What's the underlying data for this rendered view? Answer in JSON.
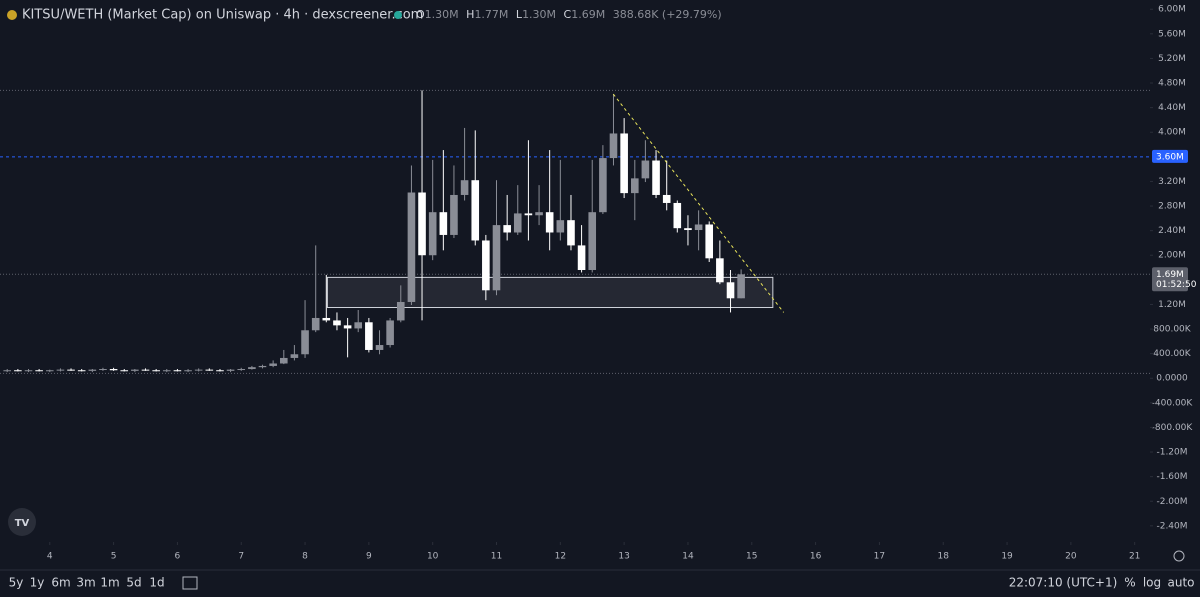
{
  "chart_data": {
    "type": "candlestick",
    "title": "KITSU/WETH (Market Cap) on Uniswap · 4h · dexscreener.com",
    "legend": {
      "o_key": "O",
      "o": "1.30M",
      "h_key": "H",
      "h": "1.77M",
      "l_key": "L",
      "l": "1.30M",
      "c_key": "C",
      "c": "1.69M",
      "change": "388.68K (+29.79%)"
    },
    "x": [
      3.333,
      3.5,
      3.667,
      3.833,
      4,
      4.167,
      4.333,
      4.5,
      4.667,
      4.833,
      5,
      5.167,
      5.333,
      5.5,
      5.667,
      5.833,
      6,
      6.167,
      6.333,
      6.5,
      6.667,
      6.833,
      7,
      7.167,
      7.333,
      7.5,
      7.667,
      7.833,
      8,
      8.167,
      8.333,
      8.5,
      8.667,
      8.833,
      9,
      9.167,
      9.333,
      9.5,
      9.667,
      9.833,
      10,
      10.167,
      10.333,
      10.5,
      10.667,
      10.833,
      11,
      11.167,
      11.333,
      11.5,
      11.667,
      11.833,
      12,
      12.167,
      12.333,
      12.5,
      12.667,
      12.833,
      13,
      13.167,
      13.333,
      13.5,
      13.667,
      13.833,
      14,
      14.167,
      14.333,
      14.5,
      14.667,
      14.833
    ],
    "open": [
      0.12,
      0.13,
      0.12,
      0.13,
      0.12,
      0.13,
      0.14,
      0.13,
      0.12,
      0.14,
      0.15,
      0.13,
      0.12,
      0.14,
      0.13,
      0.12,
      0.13,
      0.12,
      0.13,
      0.14,
      0.13,
      0.12,
      0.14,
      0.15,
      0.18,
      0.2,
      0.24,
      0.33,
      0.39,
      0.78,
      0.98,
      0.94,
      0.86,
      0.81,
      0.91,
      0.46,
      0.54,
      0.94,
      1.24,
      3.02,
      2.0,
      2.7,
      2.33,
      2.98,
      3.22,
      2.24,
      1.43,
      2.49,
      2.37,
      2.68,
      2.65,
      2.7,
      2.37,
      2.57,
      2.16,
      1.76,
      2.7,
      3.58,
      3.98,
      3.01,
      3.25,
      3.54,
      2.98,
      2.85,
      2.44,
      2.41,
      2.5,
      1.95,
      1.56,
      1.3
    ],
    "high": [
      0.15,
      0.15,
      0.15,
      0.15,
      0.14,
      0.16,
      0.16,
      0.15,
      0.15,
      0.17,
      0.17,
      0.15,
      0.15,
      0.16,
      0.15,
      0.15,
      0.15,
      0.15,
      0.16,
      0.16,
      0.15,
      0.15,
      0.17,
      0.2,
      0.22,
      0.29,
      0.46,
      0.54,
      1.27,
      2.16,
      1.68,
      1.07,
      0.98,
      1.11,
      0.98,
      0.78,
      0.98,
      1.51,
      3.46,
      4.68,
      3.55,
      3.71,
      3.46,
      4.07,
      4.03,
      2.33,
      3.22,
      2.98,
      3.14,
      3.87,
      3.14,
      3.71,
      3.55,
      2.98,
      2.49,
      3.55,
      3.79,
      4.62,
      4.23,
      3.55,
      3.87,
      3.71,
      3.54,
      2.89,
      2.65,
      2.73,
      2.55,
      2.24,
      1.76,
      1.77
    ],
    "low": [
      0.1,
      0.11,
      0.1,
      0.11,
      0.1,
      0.11,
      0.12,
      0.11,
      0.1,
      0.12,
      0.12,
      0.11,
      0.1,
      0.12,
      0.11,
      0.1,
      0.11,
      0.1,
      0.11,
      0.12,
      0.11,
      0.1,
      0.12,
      0.14,
      0.16,
      0.18,
      0.23,
      0.29,
      0.33,
      0.75,
      0.91,
      0.78,
      0.34,
      0.75,
      0.42,
      0.39,
      0.5,
      0.91,
      1.19,
      0.94,
      1.92,
      2.08,
      2.28,
      2.89,
      2.16,
      1.27,
      1.35,
      2.24,
      2.33,
      2.24,
      2.49,
      2.08,
      2.24,
      2.08,
      1.72,
      1.72,
      2.67,
      3.46,
      2.93,
      2.57,
      3.19,
      2.93,
      2.73,
      2.37,
      2.16,
      2.08,
      1.89,
      1.53,
      1.07,
      1.3
    ],
    "close": [
      0.13,
      0.12,
      0.13,
      0.12,
      0.13,
      0.14,
      0.13,
      0.12,
      0.14,
      0.15,
      0.13,
      0.12,
      0.14,
      0.13,
      0.12,
      0.13,
      0.12,
      0.13,
      0.14,
      0.13,
      0.12,
      0.14,
      0.15,
      0.18,
      0.2,
      0.24,
      0.33,
      0.39,
      0.78,
      0.98,
      0.94,
      0.86,
      0.81,
      0.91,
      0.46,
      0.54,
      0.94,
      1.24,
      3.02,
      2.0,
      2.7,
      2.33,
      2.98,
      3.22,
      2.24,
      1.43,
      2.49,
      2.37,
      2.68,
      2.65,
      2.7,
      2.37,
      2.57,
      2.16,
      1.76,
      2.7,
      3.58,
      3.98,
      3.01,
      3.25,
      3.54,
      2.98,
      2.85,
      2.44,
      2.41,
      2.5,
      1.95,
      1.56,
      1.3,
      1.69
    ],
    "up_color": "#8a8d96",
    "down_color": "#ffffff",
    "xlim": [
      3.22,
      21.24
    ],
    "xticks": [
      4,
      5,
      6,
      7,
      8,
      9,
      10,
      11,
      12,
      13,
      14,
      15,
      16,
      17,
      18,
      19,
      20,
      21
    ],
    "ylim": [
      -2.63,
      6.15
    ],
    "yticks": [
      {
        "value": 6,
        "label": "6.00M"
      },
      {
        "value": 5.6,
        "label": "5.60M"
      },
      {
        "value": 5.2,
        "label": "5.20M"
      },
      {
        "value": 4.8,
        "label": "4.80M"
      },
      {
        "value": 4.4,
        "label": "4.40M"
      },
      {
        "value": 4,
        "label": "4.00M"
      },
      {
        "value": 3.2,
        "label": "3.20M"
      },
      {
        "value": 2.8,
        "label": "2.80M"
      },
      {
        "value": 2.4,
        "label": "2.40M"
      },
      {
        "value": 2,
        "label": "2.00M"
      },
      {
        "value": 1.2,
        "label": "1.20M"
      },
      {
        "value": 0.8,
        "label": "800.00K"
      },
      {
        "value": 0.4,
        "label": "400.00K"
      },
      {
        "value": 0,
        "label": "0.0000"
      },
      {
        "value": -0.4,
        "label": "-400.00K"
      },
      {
        "value": -0.8,
        "label": "-800.00K"
      },
      {
        "value": -1.2,
        "label": "-1.20M"
      },
      {
        "value": -1.6,
        "label": "-1.60M"
      },
      {
        "value": -2,
        "label": "-2.00M"
      },
      {
        "value": -2.4,
        "label": "-2.40M"
      }
    ],
    "grid": false,
    "hlines": [
      {
        "value": 4.68,
        "color": "#5d606b",
        "dash": "1 2"
      },
      {
        "value": 3.6,
        "color": "#2962ff",
        "dash": "3 3"
      },
      {
        "value": 1.69,
        "color": "#5d606b",
        "dash": "1 2"
      },
      {
        "value": 0.08,
        "color": "#5d606b",
        "dash": "1 2"
      }
    ],
    "price_labels": [
      {
        "value": 3.6,
        "label": "3.60M",
        "color": "#2962ff"
      },
      {
        "value": 1.69,
        "label": "1.69M",
        "countdown": "01:52:50",
        "color": "#5d606b"
      }
    ],
    "zone": {
      "x": [
        8.35,
        15.33
      ],
      "y": [
        1.15,
        1.64
      ]
    },
    "trendline": {
      "x": [
        12.83,
        15.5
      ],
      "y": [
        4.62,
        1.07
      ],
      "color": "#e8e35a"
    }
  },
  "toolbar": {
    "ranges": [
      "5y",
      "1y",
      "6m",
      "3m",
      "1m",
      "5d",
      "1d"
    ],
    "time": "22:07:10 (UTC+1)",
    "percent": "%",
    "log": "log",
    "auto": "auto"
  }
}
